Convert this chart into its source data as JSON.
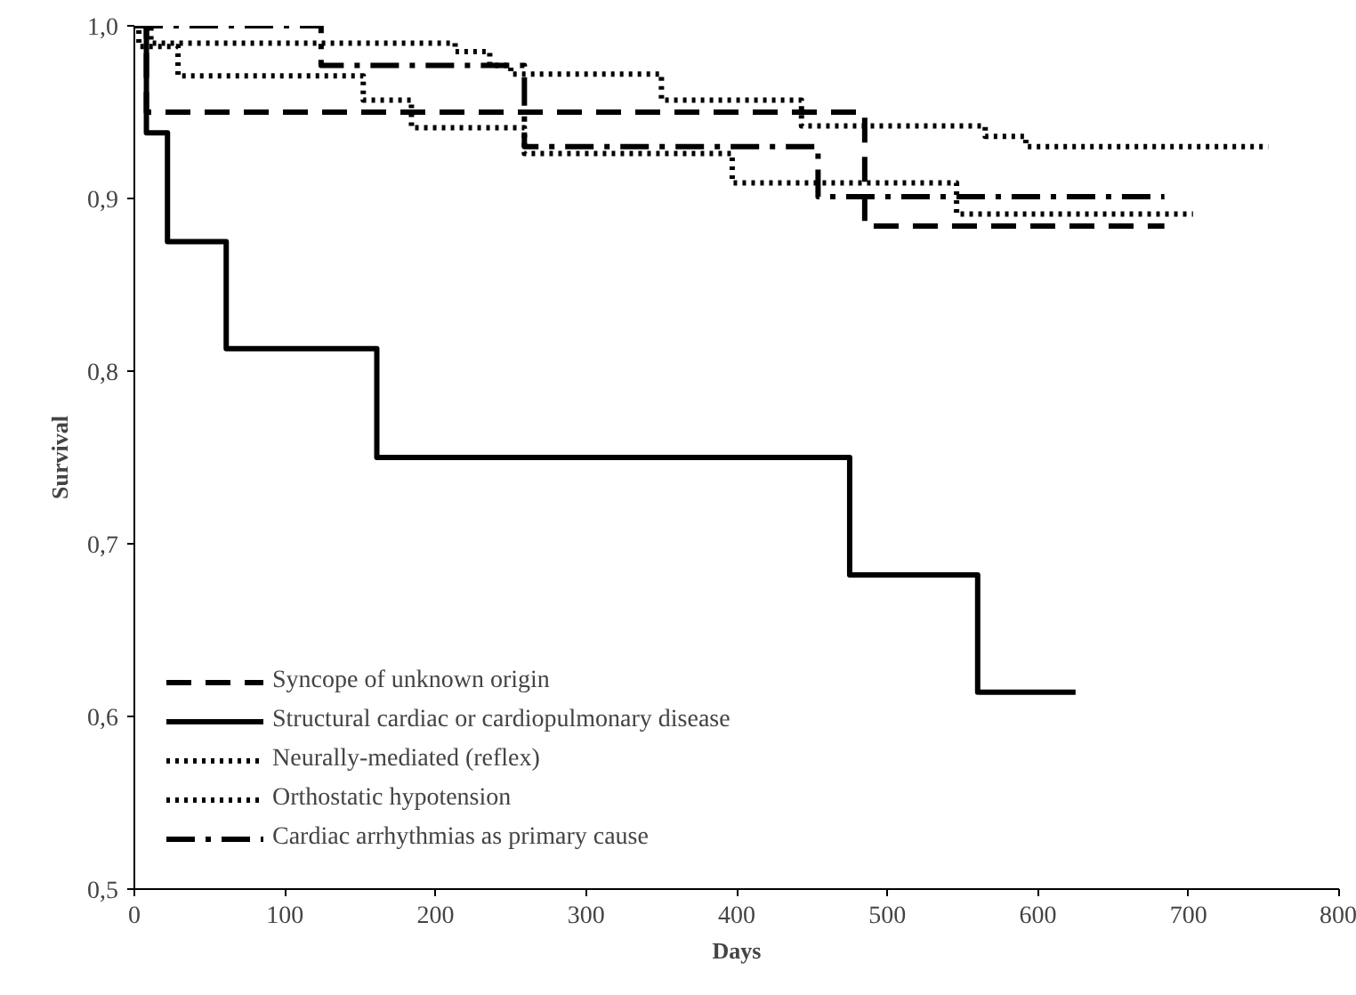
{
  "chart_data": {
    "type": "step",
    "xlabel": "Days",
    "ylabel": "Survival",
    "xlim": [
      0,
      800
    ],
    "ylim": [
      0.5,
      1.0
    ],
    "xticks": [
      0,
      100,
      200,
      300,
      400,
      500,
      600,
      700,
      800
    ],
    "yticks": [
      {
        "value": 0.5,
        "label": "0,5"
      },
      {
        "value": 0.6,
        "label": "0,6"
      },
      {
        "value": 0.7,
        "label": "0,7"
      },
      {
        "value": 0.8,
        "label": "0,8"
      },
      {
        "value": 0.9,
        "label": "0,9"
      },
      {
        "value": 1.0,
        "label": "1,0"
      }
    ],
    "grid": false,
    "legend": "bottom left",
    "series": [
      {
        "name": "Syncope of unknown origin",
        "color": "#000000",
        "line_style": "dashed",
        "x": [
          0,
          8,
          485,
          684
        ],
        "values": [
          1.0,
          0.95,
          0.884,
          0.884
        ]
      },
      {
        "name": "Structural cardiac or cardiopulmonary disease",
        "color": "#000000",
        "line_style": "solid",
        "x": [
          0,
          8,
          22,
          61,
          161,
          475,
          560,
          625
        ],
        "values": [
          1.0,
          0.938,
          0.875,
          0.813,
          0.75,
          0.682,
          0.614,
          0.614
        ]
      },
      {
        "name": "Neurally-mediated (reflex)",
        "color": "#000000",
        "line_style": "dotted",
        "x": [
          0,
          11,
          213,
          236,
          250,
          350,
          443,
          565,
          592,
          753
        ],
        "values": [
          1.0,
          0.99,
          0.985,
          0.977,
          0.972,
          0.957,
          0.942,
          0.936,
          0.93,
          0.93
        ]
      },
      {
        "name": "Orthostatic hypotension",
        "color": "#000000",
        "line_style": "dotted",
        "x": [
          0,
          3,
          29,
          152,
          184,
          259,
          397,
          546,
          703
        ],
        "values": [
          1.0,
          0.988,
          0.971,
          0.957,
          0.941,
          0.926,
          0.909,
          0.891,
          0.891
        ]
      },
      {
        "name": "Cardiac arrhythmias as primary cause",
        "color": "#000000",
        "line_style": "dashdot",
        "x": [
          0,
          124,
          259,
          454,
          684
        ],
        "values": [
          1.0,
          0.977,
          0.93,
          0.901,
          0.901
        ]
      }
    ]
  }
}
